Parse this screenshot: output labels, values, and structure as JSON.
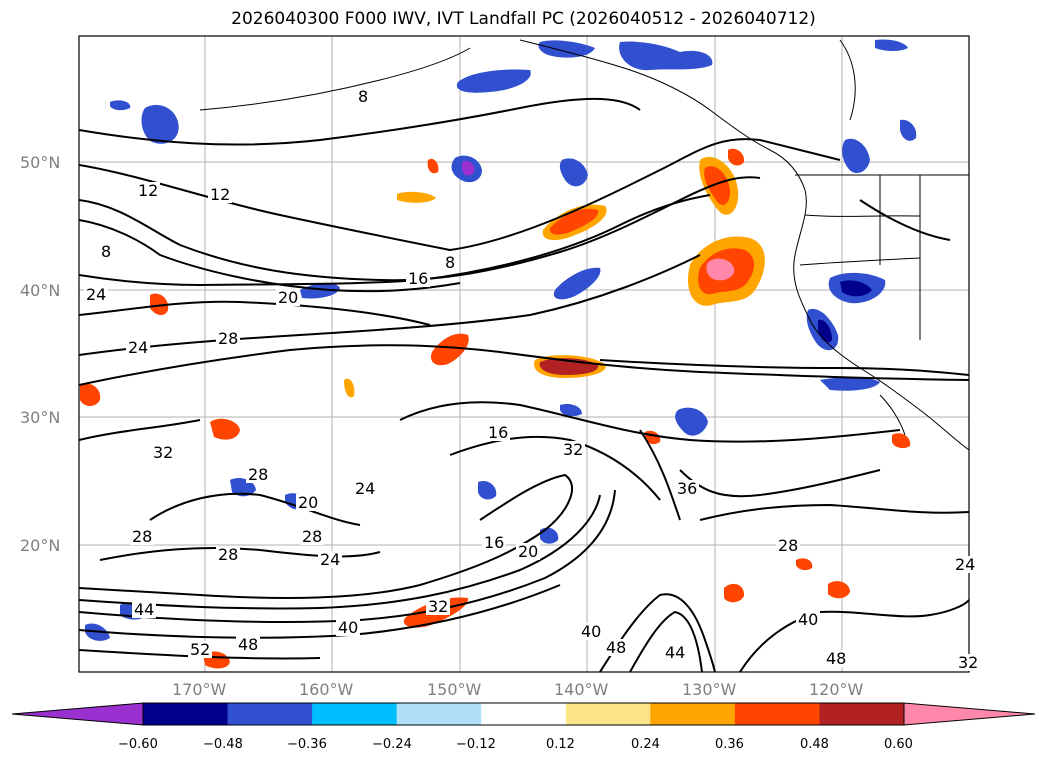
{
  "title": "2026040300 F000 IWV, IVT Landfall PC (2026040512 - 2026040712)",
  "lat_labels": [
    "50°N",
    "40°N",
    "30°N",
    "20°N"
  ],
  "lon_labels": [
    "170°W",
    "160°W",
    "150°W",
    "140°W",
    "130°W",
    "120°W"
  ],
  "contour_labels": [
    "8",
    "12",
    "12",
    "8",
    "16",
    "8",
    "20",
    "28",
    "24",
    "24",
    "32",
    "28",
    "20",
    "24",
    "16",
    "32",
    "16",
    "28",
    "28",
    "28",
    "24",
    "36",
    "44",
    "40",
    "32",
    "40",
    "48",
    "44",
    "52",
    "48",
    "28",
    "24",
    "40",
    "32",
    "20",
    "48"
  ],
  "colorbar": {
    "ticks": [
      "−0.60",
      "−0.48",
      "−0.36",
      "−0.24",
      "−0.12",
      "0.12",
      "0.24",
      "0.36",
      "0.48",
      "0.60"
    ],
    "colors": [
      "#9b30d0",
      "#00008b",
      "#3050d0",
      "#00bfff",
      "#b0e0f8",
      "#ffffff",
      "#fde68a",
      "#ffa500",
      "#ff4500",
      "#b22222",
      "#ff88aa"
    ]
  },
  "anomaly_colors": {
    "pos_light": "#fde68a",
    "pos_mid": "#ffa500",
    "pos_strong": "#ff4500",
    "pos_max": "#b22222",
    "neg_light": "#b0e0f8",
    "neg_mid": "#00bfff",
    "neg_strong": "#3050d0",
    "neg_max": "#00008b"
  }
}
